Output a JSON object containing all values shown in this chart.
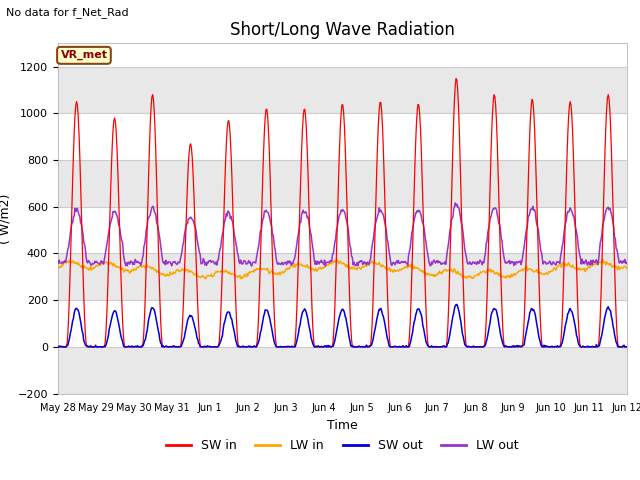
{
  "title": "Short/Long Wave Radiation",
  "subtitle": "No data for f_Net_Rad",
  "ylabel": "( W/m2)",
  "xlabel": "Time",
  "ylim": [
    -200,
    1300
  ],
  "yticks": [
    -200,
    0,
    200,
    400,
    600,
    800,
    1000,
    1200
  ],
  "legend_label": "VR_met",
  "colors": {
    "SW_in": "#ff0000",
    "LW_in": "#ffa500",
    "SW_out": "#0000dd",
    "LW_out": "#9933cc"
  },
  "legend_entries": [
    "SW in",
    "LW in",
    "SW out",
    "LW out"
  ],
  "x_tick_labels": [
    "May 28",
    "May 29",
    "May 30",
    "May 31",
    "Jun 1",
    "Jun 2",
    "Jun 3",
    "Jun 4",
    "Jun 5",
    "Jun 6",
    "Jun 7",
    "Jun 8",
    "Jun 9",
    "Jun 10",
    "Jun 11",
    "Jun 12"
  ],
  "background_color": "#ffffff",
  "plot_bg_color": "#ffffff",
  "grid_color": "#cccccc",
  "band_color": "#e8e8e8",
  "title_fontsize": 12,
  "label_fontsize": 9,
  "tick_fontsize": 8,
  "legend_fontsize": 9
}
